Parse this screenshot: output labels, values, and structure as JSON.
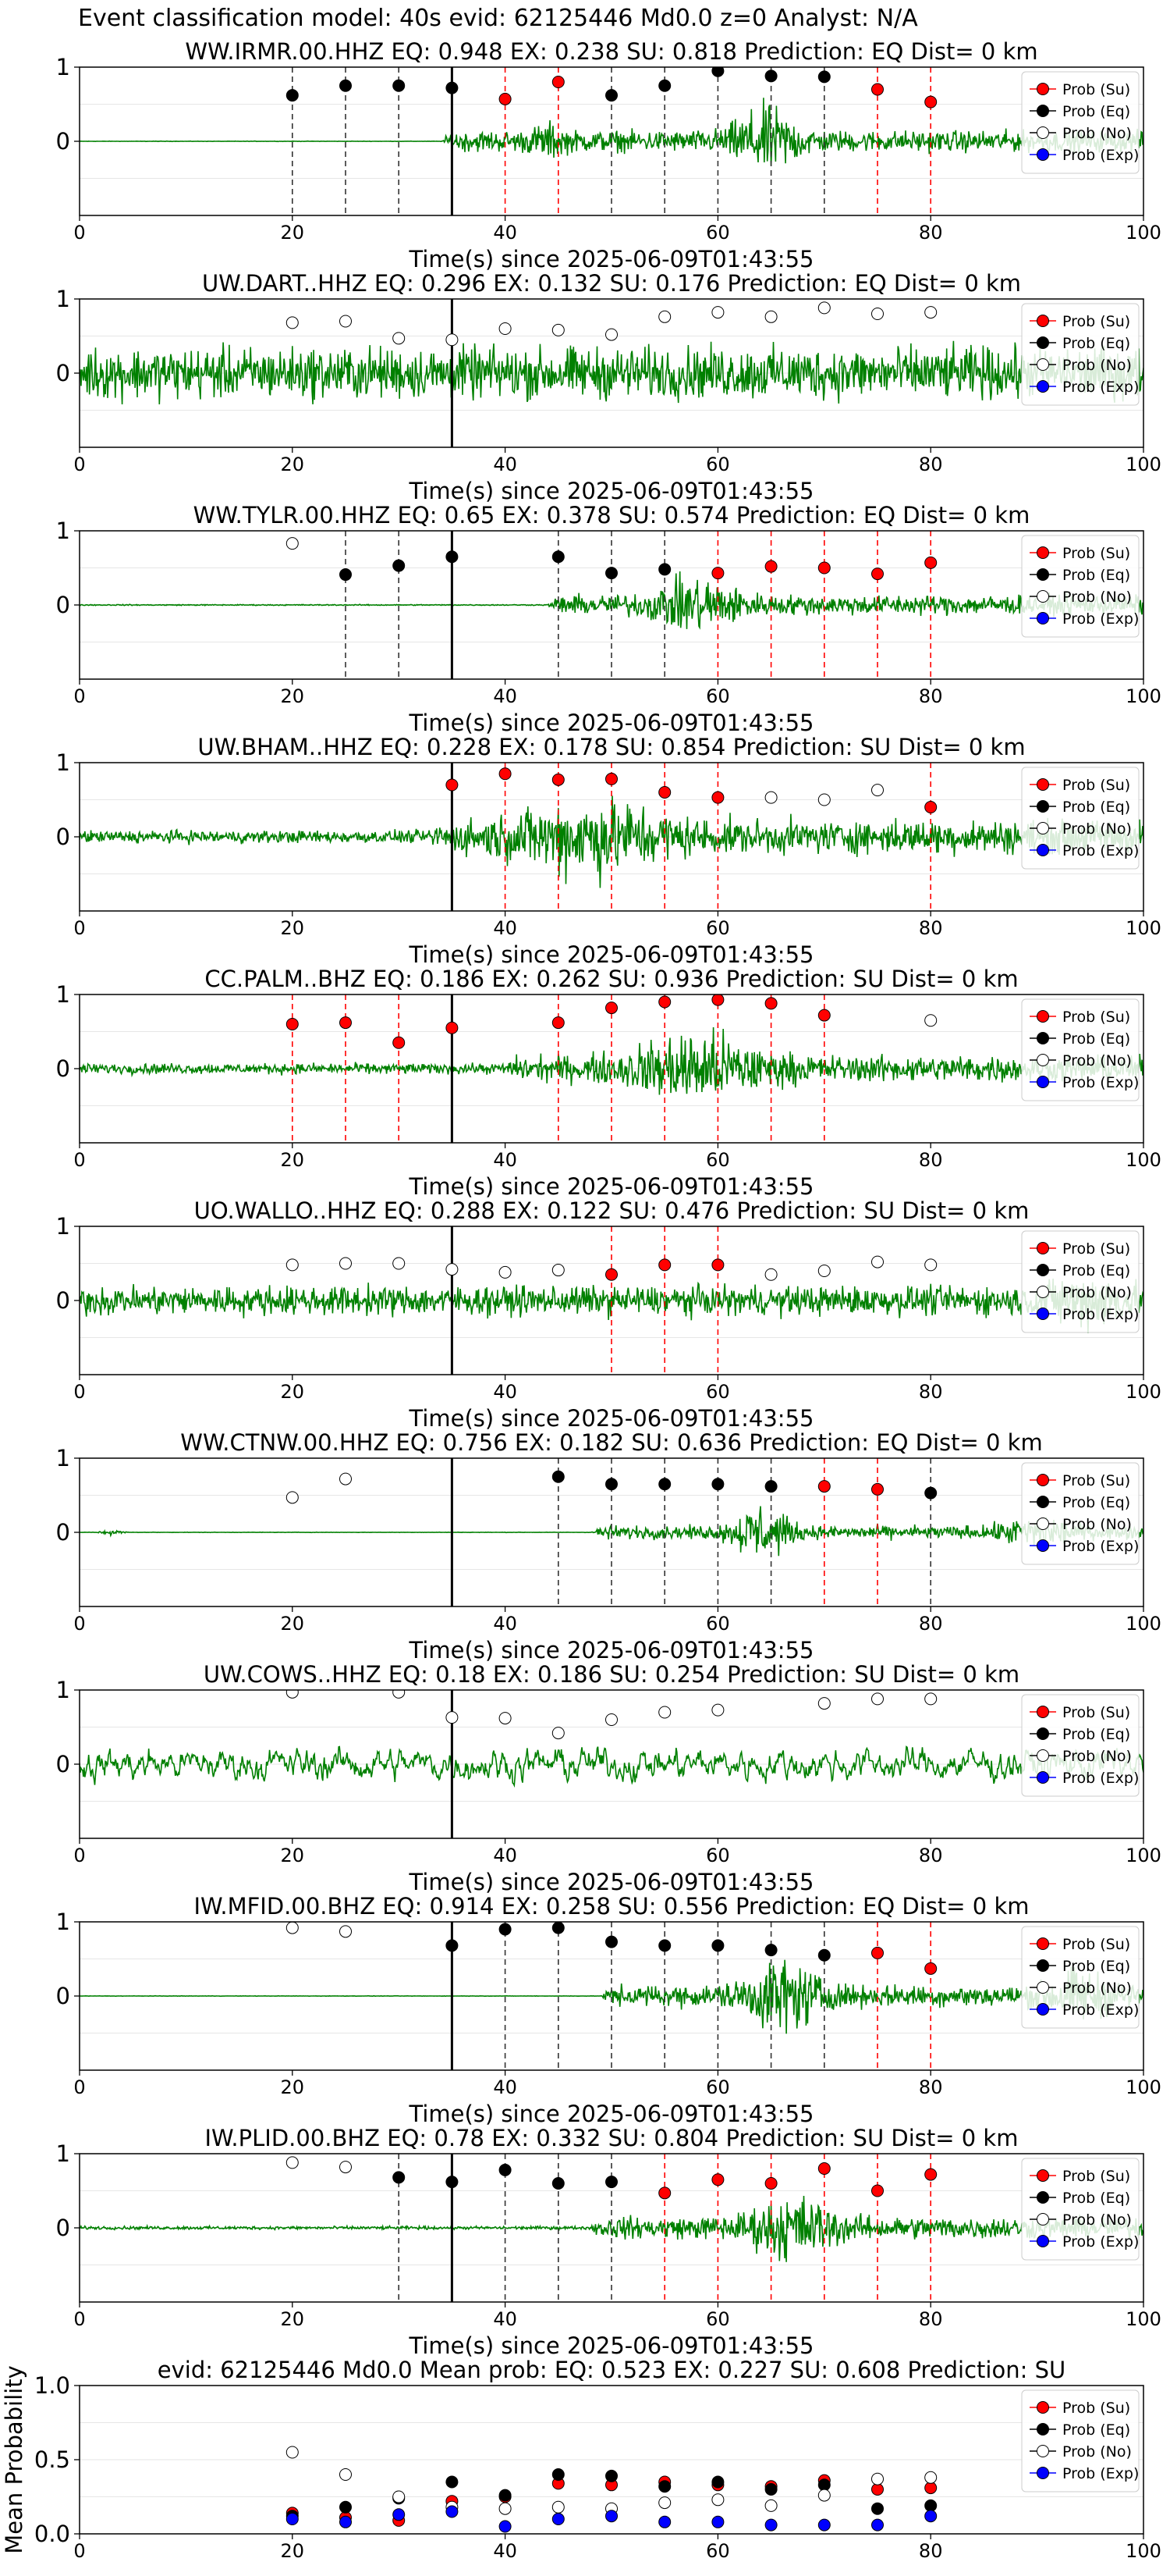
{
  "suptitle": "Event classification model: 40s evid: 62125446 Md0.0 z=0 Analyst: N/A",
  "colors": {
    "su": "#ff0000",
    "eq": "#000000",
    "no": "#ffffff",
    "exp": "#0000ff",
    "trace": "#008000"
  },
  "legend_entries": [
    "Prob (Su)",
    "Prob (Eq)",
    "Prob (No)",
    "Prob (Exp)"
  ],
  "xlabel": "Time(s) since 2025-06-09T01:43:55",
  "chart_data": [
    {
      "type": "line",
      "title": "WW.IRMR.00.HHZ   EQ: 0.948  EX: 0.238  SU: 0.818   Prediction: EQ    Dist= 0 km",
      "xlim": [
        0,
        100
      ],
      "ylim": [
        -1,
        1
      ],
      "xticks": [
        0,
        20,
        40,
        60,
        80,
        100
      ],
      "yticks": [
        1,
        0
      ],
      "onset_line_x": 35,
      "legend": "top-right",
      "points": [
        [
          20,
          0.62,
          "eq"
        ],
        [
          25,
          0.75,
          "eq"
        ],
        [
          30,
          0.75,
          "eq"
        ],
        [
          35,
          0.72,
          "eq"
        ],
        [
          40,
          0.57,
          "su"
        ],
        [
          45,
          0.8,
          "su"
        ],
        [
          50,
          0.62,
          "eq"
        ],
        [
          55,
          0.75,
          "eq"
        ],
        [
          60,
          0.95,
          "eq"
        ],
        [
          65,
          0.88,
          "eq"
        ],
        [
          70,
          0.87,
          "eq"
        ],
        [
          75,
          0.7,
          "su"
        ],
        [
          80,
          0.53,
          "su"
        ]
      ],
      "trace": {
        "noise": 0.004,
        "segments": [
          {
            "start": 34,
            "end": 100,
            "amp": 0.2
          }
        ],
        "bursts": [
          {
            "center": 64.5,
            "width": 3,
            "amp": 0.5
          },
          {
            "center": 44,
            "width": 1.5,
            "amp": 0.18
          }
        ]
      }
    },
    {
      "type": "line",
      "title": "UW.DART..HHZ   EQ: 0.296  EX: 0.132  SU: 0.176   Prediction: EQ    Dist= 0 km",
      "xlim": [
        0,
        100
      ],
      "ylim": [
        -1,
        1
      ],
      "xticks": [
        0,
        20,
        40,
        60,
        80,
        100
      ],
      "yticks": [
        1,
        0
      ],
      "onset_line_x": 35,
      "legend": "top-right",
      "points": [
        [
          20,
          0.68,
          "no"
        ],
        [
          25,
          0.7,
          "no"
        ],
        [
          30,
          0.47,
          "no"
        ],
        [
          35,
          0.45,
          "no"
        ],
        [
          40,
          0.6,
          "no"
        ],
        [
          45,
          0.58,
          "no"
        ],
        [
          50,
          0.52,
          "no"
        ],
        [
          55,
          0.76,
          "no"
        ],
        [
          60,
          0.82,
          "no"
        ],
        [
          65,
          0.76,
          "no"
        ],
        [
          70,
          0.88,
          "no"
        ],
        [
          75,
          0.8,
          "no"
        ],
        [
          80,
          0.82,
          "no"
        ]
      ],
      "trace": {
        "noise": 0.5,
        "segments": [],
        "bursts": []
      }
    },
    {
      "type": "line",
      "title": "WW.TYLR.00.HHZ   EQ: 0.65  EX: 0.378  SU: 0.574   Prediction: EQ    Dist= 0 km",
      "xlim": [
        0,
        100
      ],
      "ylim": [
        -1,
        1
      ],
      "xticks": [
        0,
        20,
        40,
        60,
        80,
        100
      ],
      "yticks": [
        1,
        0
      ],
      "onset_line_x": 35,
      "legend": "top-right",
      "points": [
        [
          20,
          0.83,
          "no"
        ],
        [
          25,
          0.41,
          "eq"
        ],
        [
          30,
          0.53,
          "eq"
        ],
        [
          35,
          0.65,
          "eq"
        ],
        [
          45,
          0.65,
          "eq"
        ],
        [
          50,
          0.43,
          "eq"
        ],
        [
          55,
          0.48,
          "eq"
        ],
        [
          60,
          0.43,
          "su"
        ],
        [
          65,
          0.52,
          "su"
        ],
        [
          70,
          0.5,
          "su"
        ],
        [
          75,
          0.42,
          "su"
        ],
        [
          80,
          0.57,
          "su"
        ]
      ],
      "trace": {
        "noise": 0.01,
        "segments": [
          {
            "start": 44,
            "end": 100,
            "amp": 0.18
          }
        ],
        "bursts": [
          {
            "center": 58,
            "width": 4,
            "amp": 0.38
          }
        ]
      }
    },
    {
      "type": "line",
      "title": "UW.BHAM..HHZ   EQ: 0.228  EX: 0.178  SU: 0.854   Prediction: SU    Dist= 0 km",
      "xlim": [
        0,
        100
      ],
      "ylim": [
        -1,
        1
      ],
      "xticks": [
        0,
        20,
        40,
        60,
        80,
        100
      ],
      "yticks": [
        1,
        0
      ],
      "onset_line_x": 35,
      "legend": "top-right",
      "points": [
        [
          35,
          0.7,
          "su"
        ],
        [
          40,
          0.85,
          "su"
        ],
        [
          45,
          0.77,
          "su"
        ],
        [
          50,
          0.78,
          "su"
        ],
        [
          55,
          0.6,
          "su"
        ],
        [
          60,
          0.53,
          "su"
        ],
        [
          65,
          0.53,
          "no"
        ],
        [
          70,
          0.5,
          "no"
        ],
        [
          75,
          0.63,
          "no"
        ],
        [
          80,
          0.4,
          "su"
        ]
      ],
      "trace": {
        "noise": 0.12,
        "segments": [
          {
            "start": 33,
            "end": 100,
            "amp": 0.2
          }
        ],
        "bursts": [
          {
            "center": 48,
            "width": 7,
            "amp": 0.5
          }
        ]
      }
    },
    {
      "type": "line",
      "title": "CC.PALM..BHZ   EQ: 0.186  EX: 0.262  SU: 0.936   Prediction: SU    Dist= 0 km",
      "xlim": [
        0,
        100
      ],
      "ylim": [
        -1,
        1
      ],
      "xticks": [
        0,
        20,
        40,
        60,
        80,
        100
      ],
      "yticks": [
        1,
        0
      ],
      "onset_line_x": 35,
      "legend": "top-right",
      "points": [
        [
          20,
          0.6,
          "su"
        ],
        [
          25,
          0.62,
          "su"
        ],
        [
          30,
          0.35,
          "su"
        ],
        [
          35,
          0.55,
          "su"
        ],
        [
          45,
          0.62,
          "su"
        ],
        [
          50,
          0.82,
          "su"
        ],
        [
          55,
          0.9,
          "su"
        ],
        [
          60,
          0.93,
          "su"
        ],
        [
          65,
          0.88,
          "su"
        ],
        [
          70,
          0.72,
          "su"
        ],
        [
          80,
          0.65,
          "no"
        ]
      ],
      "trace": {
        "noise": 0.1,
        "segments": [
          {
            "start": 40,
            "end": 100,
            "amp": 0.15
          }
        ],
        "bursts": [
          {
            "center": 58,
            "width": 6,
            "amp": 0.5
          }
        ]
      }
    },
    {
      "type": "line",
      "title": "UO.WALLO..HHZ   EQ: 0.288  EX: 0.122  SU: 0.476   Prediction: SU    Dist= 0 km",
      "xlim": [
        0,
        100
      ],
      "ylim": [
        -1,
        1
      ],
      "xticks": [
        0,
        20,
        40,
        60,
        80,
        100
      ],
      "yticks": [
        1,
        0
      ],
      "onset_line_x": 35,
      "legend": "top-right",
      "points": [
        [
          20,
          0.48,
          "no"
        ],
        [
          25,
          0.5,
          "no"
        ],
        [
          30,
          0.5,
          "no"
        ],
        [
          35,
          0.42,
          "no"
        ],
        [
          40,
          0.38,
          "no"
        ],
        [
          45,
          0.41,
          "no"
        ],
        [
          50,
          0.35,
          "su"
        ],
        [
          55,
          0.48,
          "su"
        ],
        [
          60,
          0.48,
          "su"
        ],
        [
          65,
          0.35,
          "no"
        ],
        [
          70,
          0.4,
          "no"
        ],
        [
          75,
          0.52,
          "no"
        ],
        [
          80,
          0.48,
          "no"
        ]
      ],
      "trace": {
        "noise": 0.28,
        "segments": [],
        "bursts": [
          {
            "center": 95,
            "width": 4,
            "amp": 0.3
          }
        ]
      }
    },
    {
      "type": "line",
      "title": "WW.CTNW.00.HHZ   EQ: 0.756  EX: 0.182  SU: 0.636   Prediction: EQ    Dist= 0 km",
      "xlim": [
        0,
        100
      ],
      "ylim": [
        -1,
        1
      ],
      "xticks": [
        0,
        20,
        40,
        60,
        80,
        100
      ],
      "yticks": [
        1,
        0
      ],
      "onset_line_x": 35,
      "legend": "top-right",
      "points": [
        [
          20,
          0.47,
          "no"
        ],
        [
          25,
          0.72,
          "no"
        ],
        [
          45,
          0.75,
          "eq"
        ],
        [
          50,
          0.65,
          "eq"
        ],
        [
          55,
          0.65,
          "eq"
        ],
        [
          60,
          0.65,
          "eq"
        ],
        [
          65,
          0.62,
          "eq"
        ],
        [
          70,
          0.62,
          "su"
        ],
        [
          75,
          0.58,
          "su"
        ],
        [
          80,
          0.53,
          "eq"
        ]
      ],
      "trace": {
        "noise": 0.004,
        "segments": [
          {
            "start": 48,
            "end": 100,
            "amp": 0.12
          }
        ],
        "bursts": [
          {
            "center": 64,
            "width": 2.5,
            "amp": 0.45
          },
          {
            "center": 90,
            "width": 3,
            "amp": 0.25
          },
          {
            "center": 3,
            "width": 1,
            "amp": 0.05
          }
        ]
      }
    },
    {
      "type": "line",
      "title": "UW.COWS..HHZ   EQ: 0.18  EX: 0.186  SU: 0.254   Prediction: SU    Dist= 0 km",
      "xlim": [
        0,
        100
      ],
      "ylim": [
        -1,
        1
      ],
      "xticks": [
        0,
        20,
        40,
        60,
        80,
        100
      ],
      "yticks": [
        1,
        0
      ],
      "onset_line_x": 35,
      "legend": "top-right",
      "points": [
        [
          20,
          0.97,
          "no"
        ],
        [
          30,
          0.97,
          "no"
        ],
        [
          35,
          0.63,
          "no"
        ],
        [
          40,
          0.62,
          "no"
        ],
        [
          45,
          0.42,
          "no"
        ],
        [
          50,
          0.6,
          "no"
        ],
        [
          55,
          0.7,
          "no"
        ],
        [
          60,
          0.73,
          "no"
        ],
        [
          70,
          0.82,
          "no"
        ],
        [
          75,
          0.88,
          "no"
        ],
        [
          80,
          0.88,
          "no"
        ]
      ],
      "trace": {
        "noise": 0.35,
        "smooth": true,
        "segments": [],
        "bursts": []
      }
    },
    {
      "type": "line",
      "title": "IW.MFID.00.BHZ   EQ: 0.914  EX: 0.258  SU: 0.556   Prediction: EQ    Dist= 0 km",
      "xlim": [
        0,
        100
      ],
      "ylim": [
        -1,
        1
      ],
      "xticks": [
        0,
        20,
        40,
        60,
        80,
        100
      ],
      "yticks": [
        1,
        0
      ],
      "onset_line_x": 35,
      "legend": "top-right",
      "points": [
        [
          20,
          0.92,
          "no"
        ],
        [
          25,
          0.87,
          "no"
        ],
        [
          35,
          0.68,
          "eq"
        ],
        [
          40,
          0.9,
          "eq"
        ],
        [
          45,
          0.92,
          "eq"
        ],
        [
          50,
          0.73,
          "eq"
        ],
        [
          55,
          0.68,
          "eq"
        ],
        [
          60,
          0.68,
          "eq"
        ],
        [
          65,
          0.62,
          "eq"
        ],
        [
          70,
          0.55,
          "eq"
        ],
        [
          75,
          0.58,
          "su"
        ],
        [
          80,
          0.37,
          "su"
        ]
      ],
      "trace": {
        "noise": 0.004,
        "segments": [
          {
            "start": 49,
            "end": 100,
            "amp": 0.2
          }
        ],
        "bursts": [
          {
            "center": 66,
            "width": 3.5,
            "amp": 0.55
          },
          {
            "center": 94,
            "width": 3,
            "amp": 0.35
          }
        ]
      }
    },
    {
      "type": "line",
      "title": "IW.PLID.00.BHZ   EQ: 0.78  EX: 0.332  SU: 0.804   Prediction: SU    Dist= 0 km",
      "xlim": [
        0,
        100
      ],
      "ylim": [
        -1,
        1
      ],
      "xticks": [
        0,
        20,
        40,
        60,
        80,
        100
      ],
      "yticks": [
        1,
        0
      ],
      "onset_line_x": 35,
      "legend": "top-right",
      "points": [
        [
          20,
          0.88,
          "no"
        ],
        [
          25,
          0.82,
          "no"
        ],
        [
          30,
          0.68,
          "eq"
        ],
        [
          35,
          0.62,
          "eq"
        ],
        [
          40,
          0.78,
          "eq"
        ],
        [
          45,
          0.6,
          "eq"
        ],
        [
          50,
          0.62,
          "eq"
        ],
        [
          55,
          0.47,
          "su"
        ],
        [
          60,
          0.65,
          "su"
        ],
        [
          65,
          0.6,
          "su"
        ],
        [
          70,
          0.8,
          "su"
        ],
        [
          75,
          0.5,
          "su"
        ],
        [
          80,
          0.72,
          "su"
        ]
      ],
      "trace": {
        "noise": 0.03,
        "segments": [
          {
            "start": 48,
            "end": 100,
            "amp": 0.18
          }
        ],
        "bursts": [
          {
            "center": 67,
            "width": 4,
            "amp": 0.45
          }
        ]
      }
    },
    {
      "type": "scatter",
      "title": "evid: 62125446  Md0.0   Mean prob:   EQ: 0.523  EX: 0.227  SU: 0.608   Prediction: SU",
      "ylabel": "Mean Probability",
      "xlim": [
        0,
        100
      ],
      "ylim": [
        0,
        1
      ],
      "xticks": [
        0,
        20,
        40,
        60,
        80,
        100
      ],
      "yticks": [
        0.0,
        0.5,
        1.0
      ],
      "legend": "top-right",
      "series": [
        {
          "name": "Prob (Su)",
          "key": "su",
          "x": [
            20,
            25,
            30,
            35,
            40,
            45,
            50,
            55,
            60,
            65,
            70,
            75,
            80
          ],
          "y": [
            0.14,
            0.11,
            0.09,
            0.22,
            0.25,
            0.34,
            0.33,
            0.35,
            0.33,
            0.32,
            0.36,
            0.3,
            0.31
          ]
        },
        {
          "name": "Prob (Eq)",
          "key": "eq",
          "x": [
            20,
            25,
            30,
            35,
            40,
            45,
            50,
            55,
            60,
            65,
            70,
            75,
            80
          ],
          "y": [
            0.12,
            0.18,
            0.24,
            0.35,
            0.26,
            0.4,
            0.39,
            0.32,
            0.35,
            0.3,
            0.33,
            0.17,
            0.19
          ]
        },
        {
          "name": "Prob (No)",
          "key": "no",
          "x": [
            20,
            25,
            30,
            35,
            40,
            45,
            50,
            55,
            60,
            65,
            70,
            75,
            80
          ],
          "y": [
            0.55,
            0.4,
            0.25,
            0.18,
            0.17,
            0.18,
            0.17,
            0.21,
            0.23,
            0.19,
            0.26,
            0.37,
            0.38
          ]
        },
        {
          "name": "Prob (Exp)",
          "key": "exp",
          "x": [
            20,
            25,
            30,
            35,
            40,
            45,
            50,
            55,
            60,
            65,
            70,
            75,
            80
          ],
          "y": [
            0.1,
            0.08,
            0.13,
            0.15,
            0.05,
            0.1,
            0.12,
            0.08,
            0.08,
            0.06,
            0.06,
            0.06,
            0.12
          ]
        }
      ]
    }
  ]
}
